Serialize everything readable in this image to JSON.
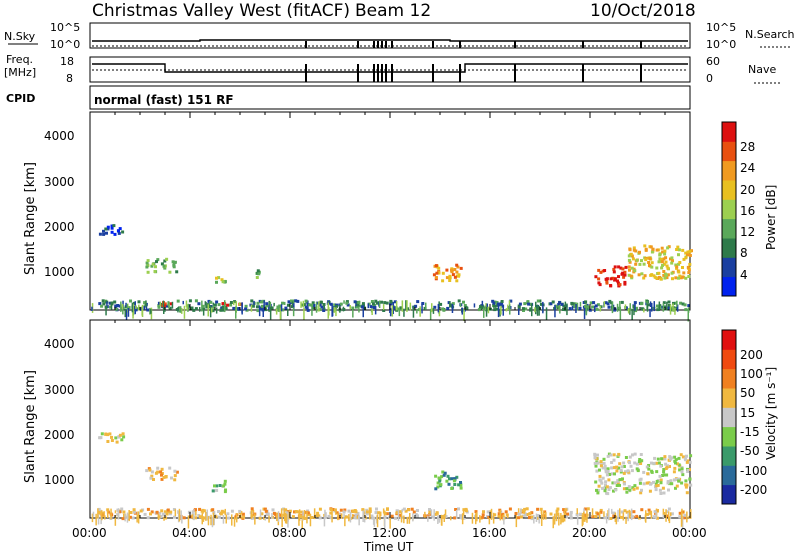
{
  "header": {
    "station": "Christmas Valley West (fitACF)",
    "beam": "Beam 12",
    "date": "10/Oct/2018"
  },
  "nsky_panel": {
    "left_label": "N.Sky",
    "right_label": "N.Search",
    "left_ticks": [
      "10^5",
      "10^0"
    ],
    "right_ticks": [
      "10^5",
      "10^0"
    ]
  },
  "freq_panel": {
    "left_label_line1": "Freq.",
    "left_label_line2": "[MHz]",
    "right_label": "Nave",
    "left_ticks": [
      "18",
      "8"
    ],
    "right_ticks": [
      "60",
      "0"
    ]
  },
  "cpid": {
    "label": "CPID",
    "text": "normal (fast) 151 RF"
  },
  "x_axis": {
    "title": "Time UT",
    "ticks": [
      "00:00",
      "04:00",
      "08:00",
      "12:00",
      "16:00",
      "20:00",
      "00:00"
    ]
  },
  "power_panel": {
    "ylabel": "Slant Range [km]",
    "yticks": [
      "4000",
      "3000",
      "2000",
      "1000"
    ],
    "colorbar_label": "Power [dB]",
    "colorbar_ticks": [
      "28",
      "24",
      "20",
      "16",
      "12",
      "8",
      "4"
    ],
    "colors": [
      "#0022ee",
      "#1a3fa0",
      "#2e7a4a",
      "#5aa85a",
      "#9ccf50",
      "#e8c020",
      "#f09a20",
      "#e85010",
      "#dd1010"
    ]
  },
  "velocity_panel": {
    "ylabel": "Slant Range [km]",
    "yticks": [
      "4000",
      "3000",
      "2000",
      "1000"
    ],
    "colorbar_label": "Velocity [m s⁻¹]",
    "colorbar_ticks": [
      "200",
      "100",
      "50",
      "15",
      "-15",
      "-50",
      "-100",
      "-200"
    ],
    "colors": [
      "#1a2aa0",
      "#2a6a9a",
      "#3a9a6a",
      "#7acc4a",
      "#c8c8c8",
      "#f0b840",
      "#f08020",
      "#f04a10",
      "#e01010"
    ]
  },
  "chart_data": [
    {
      "type": "line",
      "title": "N.Sky / N.Search",
      "x": [
        "00:00",
        "04:00",
        "08:00",
        "12:00",
        "16:00",
        "20:00",
        "00:00"
      ],
      "series": [
        {
          "name": "N.Sky",
          "values": [
            2,
            2,
            2,
            2,
            2,
            2,
            2
          ]
        }
      ],
      "ylim": [
        0,
        5
      ]
    },
    {
      "type": "line",
      "title": "Freq. [MHz] / Nave",
      "x": [
        "00:00",
        "03:00",
        "15:00",
        "24:00"
      ],
      "series": [
        {
          "name": "Freq.",
          "values": [
            13,
            10,
            13,
            13
          ]
        },
        {
          "name": "Nave",
          "values": [
            18,
            18,
            18,
            18
          ]
        }
      ],
      "ylim": [
        8,
        18
      ]
    },
    {
      "type": "heatmap",
      "title": "Power [dB]",
      "xlabel": "Time UT",
      "ylabel": "Slant Range [km]",
      "xlim": [
        0,
        24
      ],
      "ylim": [
        180,
        4600
      ],
      "zlim": [
        0,
        30
      ],
      "patches": [
        {
          "t0": 0.2,
          "t1": 24,
          "r0": 200,
          "r1": 420,
          "level": 2
        },
        {
          "t0": 2.2,
          "t1": 3.5,
          "r0": 1050,
          "r1": 1350,
          "level": 3
        },
        {
          "t0": 4.8,
          "t1": 5.4,
          "r0": 800,
          "r1": 1050,
          "level": 4
        },
        {
          "t0": 6.5,
          "t1": 6.9,
          "r0": 900,
          "r1": 1150,
          "level": 3
        },
        {
          "t0": 13.7,
          "t1": 14.8,
          "r0": 850,
          "r1": 1250,
          "level": 6
        },
        {
          "t0": 20.1,
          "t1": 21.4,
          "r0": 750,
          "r1": 1200,
          "level": 8
        },
        {
          "t0": 21.5,
          "t1": 24,
          "r0": 900,
          "r1": 1650,
          "level": 5
        },
        {
          "t0": 0.3,
          "t1": 1.3,
          "r0": 1900,
          "r1": 2100,
          "level": 1
        },
        {
          "t0": 2.5,
          "t1": 3.2,
          "r0": 300,
          "r1": 380,
          "level": 7
        },
        {
          "t0": 5.0,
          "t1": 6.0,
          "r0": 300,
          "r1": 380,
          "level": 8
        }
      ]
    },
    {
      "type": "heatmap",
      "title": "Velocity [m s-1]",
      "xlabel": "Time UT",
      "ylabel": "Slant Range [km]",
      "xlim": [
        0,
        24
      ],
      "ylim": [
        180,
        4600
      ],
      "zlim": [
        -200,
        200
      ],
      "patches": [
        {
          "t0": 0.2,
          "t1": 24,
          "r0": 200,
          "r1": 420,
          "level": 5
        },
        {
          "t0": 2.2,
          "t1": 3.5,
          "r0": 1050,
          "r1": 1350,
          "level": 5
        },
        {
          "t0": 4.8,
          "t1": 5.4,
          "r0": 800,
          "r1": 1050,
          "level": 3
        },
        {
          "t0": 13.7,
          "t1": 14.8,
          "r0": 850,
          "r1": 1250,
          "level": 2
        },
        {
          "t0": 20.1,
          "t1": 24,
          "r0": 750,
          "r1": 1650,
          "level": 4
        },
        {
          "t0": 0.3,
          "t1": 1.3,
          "r0": 1900,
          "r1": 2100,
          "level": 4
        }
      ]
    }
  ]
}
